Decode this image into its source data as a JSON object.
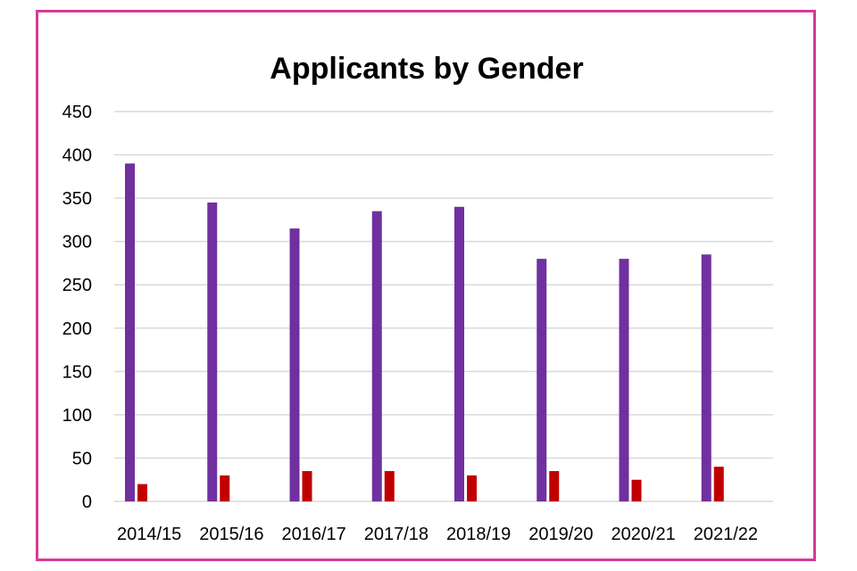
{
  "chart_data": {
    "type": "bar",
    "title": "Applicants by Gender",
    "xlabel": "",
    "ylabel": "",
    "categories": [
      "2014/15",
      "2015/16",
      "2016/17",
      "2017/18",
      "2018/19",
      "2019/20",
      "2020/21",
      "2021/22"
    ],
    "series": [
      {
        "color": "#7030a0",
        "values": [
          390,
          345,
          315,
          335,
          340,
          280,
          280,
          285
        ]
      },
      {
        "color": "#c00000",
        "values": [
          20,
          30,
          35,
          35,
          30,
          35,
          25,
          40
        ]
      }
    ],
    "ylim": [
      0,
      450
    ],
    "yticks": [
      0,
      50,
      100,
      150,
      200,
      250,
      300,
      350,
      400,
      450
    ],
    "grid": true,
    "legend": "none"
  },
  "colors": {
    "frame_border": "#d63a96",
    "gridline": "#d9d9d9"
  }
}
